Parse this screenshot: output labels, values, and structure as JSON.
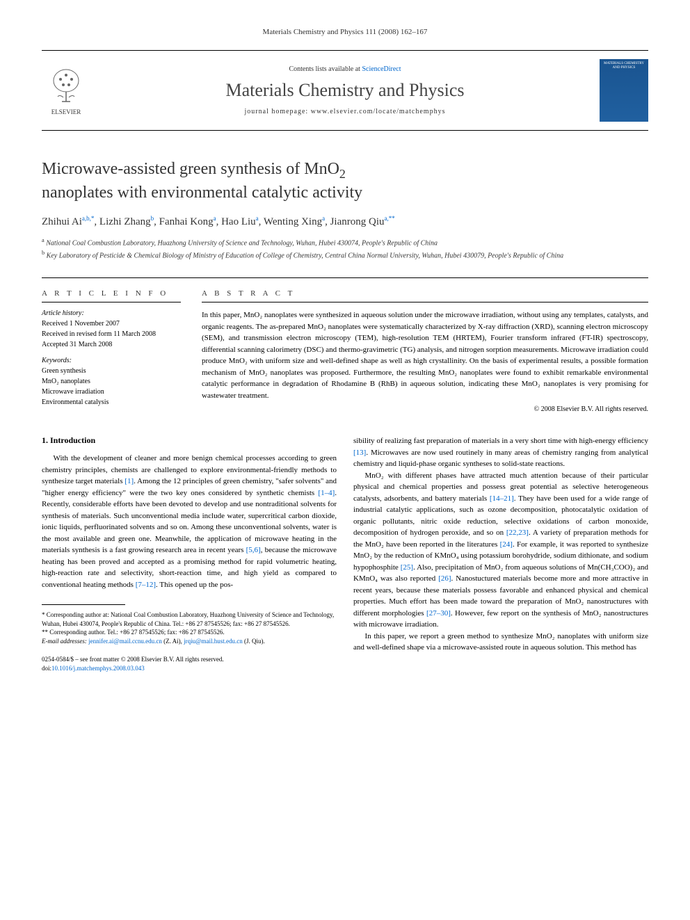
{
  "page_header": "Materials Chemistry and Physics 111 (2008) 162–167",
  "masthead": {
    "contents_prefix": "Contents lists available at ",
    "contents_link": "ScienceDirect",
    "journal_name": "Materials Chemistry and Physics",
    "homepage_prefix": "journal homepage: ",
    "homepage_url": "www.elsevier.com/locate/matchemphys",
    "publisher": "ELSEVIER",
    "cover_title": "MATERIALS CHEMISTRY AND PHYSICS"
  },
  "title_line1": "Microwave-assisted green synthesis of MnO",
  "title_sub1": "2",
  "title_line2": "nanoplates with environmental catalytic activity",
  "authors_html": "Zhihui Ai<sup>a,b,*</sup>, Lizhi Zhang<sup>b</sup>, Fanhai Kong<sup>a</sup>, Hao Liu<sup>a</sup>, Wenting Xing<sup>a</sup>, Jianrong Qiu<sup>a,**</sup>",
  "affiliations": {
    "a": "National Coal Combustion Laboratory, Huazhong University of Science and Technology, Wuhan, Hubei 430074, People's Republic of China",
    "b": "Key Laboratory of Pesticide & Chemical Biology of Ministry of Education of College of Chemistry, Central China Normal University, Wuhan, Hubei 430079, People's Republic of China"
  },
  "info": {
    "heading": "A R T I C L E   I N F O",
    "history_label": "Article history:",
    "history": "Received 1 November 2007\nReceived in revised form 11 March 2008\nAccepted 31 March 2008",
    "keywords_label": "Keywords:",
    "keywords": "Green synthesis\nMnO₂ nanoplates\nMicrowave irradiation\nEnvironmental catalysis"
  },
  "abstract": {
    "heading": "A B S T R A C T",
    "text": "In this paper, MnO₂ nanoplates were synthesized in aqueous solution under the microwave irradiation, without using any templates, catalysts, and organic reagents. The as-prepared MnO₂ nanoplates were systematically characterized by X-ray diffraction (XRD), scanning electron microscopy (SEM), and transmission electron microscopy (TEM), high-resolution TEM (HRTEM), Fourier transform infrared (FT-IR) spectroscopy, differential scanning calorimetry (DSC) and thermo-gravimetric (TG) analysis, and nitrogen sorption measurements. Microwave irradiation could produce MnO₂ with uniform size and well-defined shape as well as high crystallinity. On the basis of experimental results, a possible formation mechanism of MnO₂ nanoplates was proposed. Furthermore, the resulting MnO₂ nanoplates were found to exhibit remarkable environmental catalytic performance in degradation of Rhodamine B (RhB) in aqueous solution, indicating these MnO₂ nanoplates is very promising for wastewater treatment.",
    "copyright": "© 2008 Elsevier B.V. All rights reserved."
  },
  "body": {
    "section1_heading": "1.  Introduction",
    "col1_p1": "With the development of cleaner and more benign chemical processes according to green chemistry principles, chemists are challenged to explore environmental-friendly methods to synthesize target materials [1]. Among the 12 principles of green chemistry, \"safer solvents\" and \"higher energy efficiency\" were the two key ones considered by synthetic chemists [1–4]. Recently, considerable efforts have been devoted to develop and use nontraditional solvents for synthesis of materials. Such unconventional media include water, supercritical carbon dioxide, ionic liquids, perfluorinated solvents and so on. Among these unconventional solvents, water is the most available and green one. Meanwhile, the application of microwave heating in the materials synthesis is a fast growing research area in recent years [5,6], because the microwave heating has been proved and accepted as a promising method for rapid volumetric heating, high-reaction rate and selectivity, short-reaction time, and high yield as compared to conventional heating methods [7–12]. This opened up the pos-",
    "col2_p1": "sibility of realizing fast preparation of materials in a very short time with high-energy efficiency [13]. Microwaves are now used routinely in many areas of chemistry ranging from analytical chemistry and liquid-phase organic syntheses to solid-state reactions.",
    "col2_p2": "MnO₂ with different phases have attracted much attention because of their particular physical and chemical properties and possess great potential as selective heterogeneous catalysts, adsorbents, and battery materials [14–21]. They have been used for a wide range of industrial catalytic applications, such as ozone decomposition, photocatalytic oxidation of organic pollutants, nitric oxide reduction, selective oxidations of carbon monoxide, decomposition of hydrogen peroxide, and so on [22,23]. A variety of preparation methods for the MnO₂ have been reported in the literatures [24]. For example, it was reported to synthesize MnO₂ by the reduction of KMnO₄ using potassium borohydride, sodium dithionate, and sodium hypophosphite [25]. Also, precipitation of MnO₂ from aqueous solutions of Mn(CH₃COO)₂ and KMnO₄ was also reported [26]. Nanostuctured materials become more and more attractive in recent years, because these materials possess favorable and enhanced physical and chemical properties. Much effort has been made toward the preparation of MnO₂ nanostructures with different morphologies [27–30]. However, few report on the synthesis of MnO₂ nanostructures with microwave irradiation.",
    "col2_p3": "In this paper, we report a green method to synthesize MnO₂ nanoplates with uniform size and well-defined shape via a microwave-assisted route in aqueous solution. This method has"
  },
  "footnotes": {
    "f1": "* Corresponding author at: National Coal Combustion Laboratory, Huazhong University of Science and Technology, Wuhan, Hubei 430074, People's Republic of China. Tel.: +86 27 87545526; fax: +86 27 87545526.",
    "f2": "** Corresponding author. Tel.: +86 27 87545526; fax: +86 27 87545526.",
    "email_label": "E-mail addresses: ",
    "email1": "jennifer.ai@mail.ccnu.edu.cn",
    "email1_who": " (Z. Ai), ",
    "email2": "jrqiu@mail.hust.edu.cn",
    "email2_who": " (J. Qiu)."
  },
  "copyright_footer": {
    "issn": "0254-0584/$ – see front matter © 2008 Elsevier B.V. All rights reserved.",
    "doi_label": "doi:",
    "doi": "10.1016/j.matchemphys.2008.03.043"
  },
  "refs": {
    "r1": "[1]",
    "r1_4": "[1–4]",
    "r5_6": "[5,6]",
    "r7_12": "[7–12]",
    "r13": "[13]",
    "r14_21": "[14–21]",
    "r22_23": "[22,23]",
    "r24": "[24]",
    "r25": "[25]",
    "r26": "[26]",
    "r27_30": "[27–30]"
  }
}
